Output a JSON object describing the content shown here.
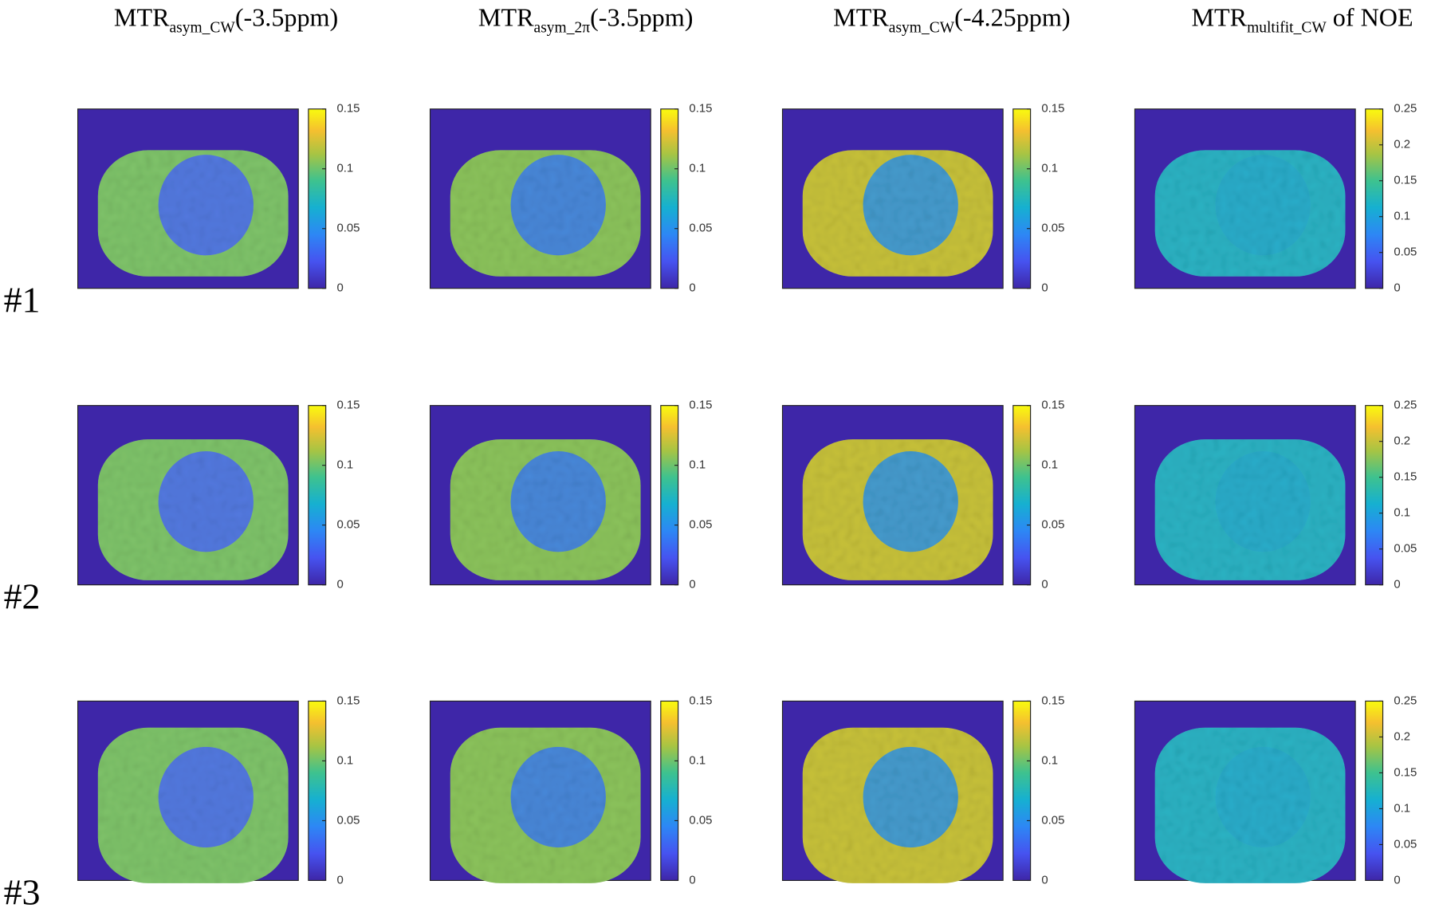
{
  "columns": [
    {
      "title": {
        "main": "MTR",
        "sub": "asym_CW",
        "rest": "(-3.5ppm)"
      },
      "colorbar": 0
    },
    {
      "title": {
        "main": "MTR",
        "sub": "asym_2π",
        "rest": "(-3.5ppm)"
      },
      "colorbar": 0
    },
    {
      "title": {
        "main": "MTR",
        "sub": "asym_CW",
        "rest": "(-4.25ppm)"
      },
      "colorbar": 0
    },
    {
      "title": {
        "main": "MTR",
        "sub": "multifit_CW",
        "rest": " of NOE"
      },
      "colorbar": 1
    }
  ],
  "rows": [
    "#1",
    "#2",
    "#3"
  ],
  "colorbars": [
    {
      "lim": [
        0,
        0.15
      ],
      "ticks": [
        0,
        0.05,
        0.1,
        0.15
      ]
    },
    {
      "lim": [
        0,
        0.25
      ],
      "ticks": [
        0,
        0.05,
        0.1,
        0.15,
        0.2,
        0.25
      ]
    }
  ]
}
